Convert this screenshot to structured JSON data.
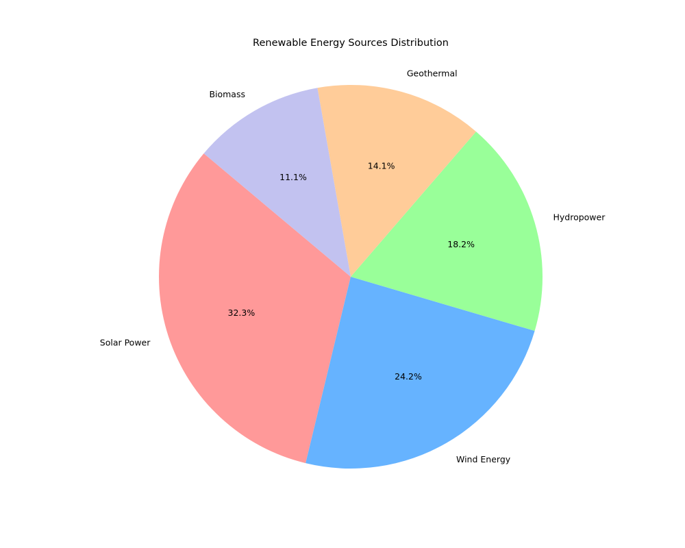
{
  "chart_data": {
    "type": "pie",
    "title": "Renewable Energy Sources Distribution",
    "categories": [
      "Solar Power",
      "Wind Energy",
      "Hydropower",
      "Geothermal",
      "Biomass"
    ],
    "values": [
      32.3,
      24.2,
      18.2,
      14.1,
      11.1
    ],
    "percent_labels": [
      "32.3%",
      "24.2%",
      "18.2%",
      "14.1%",
      "11.1%"
    ],
    "colors": [
      "#ff9999",
      "#66b3ff",
      "#99ff99",
      "#ffcc99",
      "#c2c2f0"
    ],
    "start_angle_deg": 140,
    "direction": "counterclockwise"
  }
}
